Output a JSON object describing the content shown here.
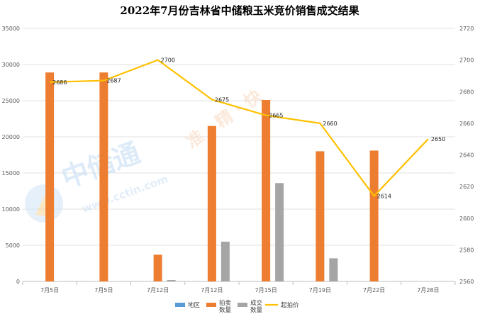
{
  "chart_data": {
    "type": "bar",
    "title": "2022年7月份吉林省中储粮玉米竞价销售成交结果",
    "categories": [
      "7月5日",
      "7月5日",
      "7月12日",
      "7月12日",
      "7月15日",
      "7月19日",
      "7月22日",
      "7月28日"
    ],
    "left_axis": {
      "ylim": [
        0,
        35000
      ],
      "ticks": [
        "0",
        "5000",
        "10000",
        "15000",
        "20000",
        "25000",
        "30000",
        "35000"
      ]
    },
    "right_axis": {
      "ylim": [
        2560,
        2720
      ],
      "ticks": [
        "2560",
        "2580",
        "2600",
        "2620",
        "2640",
        "2660",
        "2680",
        "2700",
        "2720"
      ]
    },
    "series": [
      {
        "name": "地区",
        "type": "bar",
        "axis": "left",
        "color": "#5b9bd5",
        "values": [
          null,
          null,
          null,
          null,
          null,
          null,
          null,
          null
        ]
      },
      {
        "name": "拍卖数量",
        "type": "bar",
        "axis": "left",
        "color": "#ed7d31",
        "values": [
          28900,
          28900,
          3700,
          21500,
          25100,
          18000,
          18100,
          null
        ]
      },
      {
        "name": "成交数量",
        "type": "bar",
        "axis": "left",
        "color": "#a5a5a5",
        "values": [
          null,
          null,
          200,
          5500,
          13600,
          3200,
          null,
          null
        ]
      },
      {
        "name": "起拍价",
        "type": "line",
        "axis": "right",
        "color": "#ffc000",
        "values": [
          2686,
          2687,
          2700,
          2675,
          2665,
          2660,
          2614,
          2650
        ],
        "labels": [
          "2686",
          "2687",
          "2700",
          "2675",
          "2665",
          "2660",
          "2614",
          "2650"
        ]
      }
    ],
    "legend": [
      "地区",
      "拍卖数量",
      "成交数量",
      "起拍价"
    ],
    "legend_position": "bottom",
    "grid": true
  },
  "watermark": {
    "logo_text": "中储通",
    "url_text": "www.cctin.com",
    "slogan": "准 · 精 · 快"
  }
}
